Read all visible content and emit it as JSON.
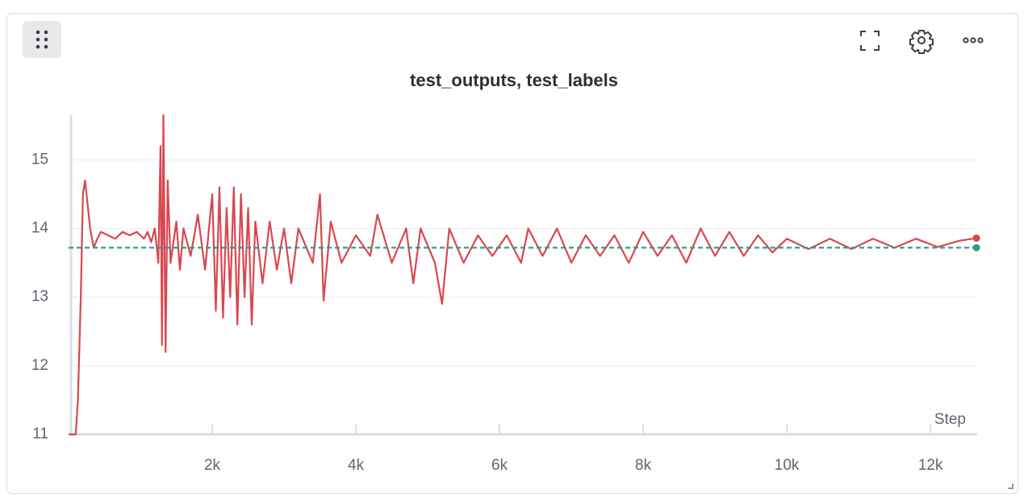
{
  "chart_data": {
    "type": "line",
    "title": "test_outputs, test_labels",
    "xlabel": "Step",
    "xlim": [
      0,
      12650
    ],
    "ylim": [
      11,
      15.65
    ],
    "xticks": [
      {
        "value": 2000,
        "label": "2k"
      },
      {
        "value": 4000,
        "label": "4k"
      },
      {
        "value": 6000,
        "label": "6k"
      },
      {
        "value": 8000,
        "label": "8k"
      },
      {
        "value": 10000,
        "label": "10k"
      },
      {
        "value": 12000,
        "label": "12k"
      }
    ],
    "yticks": [
      11,
      12,
      13,
      14,
      15
    ],
    "grid": true,
    "series": [
      {
        "color": "#d9474f",
        "style": "solid",
        "x": [
          0,
          100,
          130,
          170,
          200,
          230,
          260,
          300,
          350,
          400,
          450,
          550,
          650,
          750,
          850,
          950,
          1050,
          1100,
          1150,
          1200,
          1250,
          1280,
          1300,
          1320,
          1350,
          1380,
          1420,
          1500,
          1550,
          1600,
          1700,
          1800,
          1900,
          2000,
          2050,
          2100,
          2150,
          2200,
          2250,
          2300,
          2350,
          2400,
          2450,
          2500,
          2550,
          2600,
          2700,
          2800,
          2900,
          3000,
          3100,
          3200,
          3400,
          3500,
          3550,
          3650,
          3800,
          4000,
          4200,
          4300,
          4500,
          4700,
          4800,
          4900,
          5100,
          5200,
          5300,
          5500,
          5700,
          5900,
          6100,
          6300,
          6400,
          6600,
          6800,
          7000,
          7200,
          7400,
          7600,
          7800,
          8000,
          8200,
          8400,
          8600,
          8800,
          9000,
          9200,
          9400,
          9600,
          9800,
          10000,
          10300,
          10600,
          10900,
          11200,
          11500,
          11800,
          12100,
          12400,
          12640
        ],
        "values": [
          11,
          11,
          11.5,
          13,
          14.5,
          14.7,
          14.4,
          14,
          13.72,
          13.85,
          13.95,
          13.9,
          13.85,
          13.95,
          13.9,
          13.95,
          13.85,
          13.95,
          13.8,
          14,
          13.5,
          15.2,
          12.3,
          15.65,
          12.2,
          14.7,
          13.5,
          14.1,
          13.4,
          14,
          13.6,
          14.2,
          13.4,
          14.5,
          12.8,
          14.6,
          12.7,
          14.3,
          13,
          14.6,
          12.6,
          14.5,
          13,
          14.3,
          12.6,
          14.1,
          13.2,
          14.1,
          13.4,
          14,
          13.2,
          14,
          13.5,
          14.5,
          12.95,
          14.1,
          13.5,
          13.9,
          13.6,
          14.2,
          13.5,
          14,
          13.2,
          14,
          13.5,
          12.9,
          14,
          13.5,
          13.9,
          13.6,
          13.9,
          13.5,
          14,
          13.6,
          14,
          13.5,
          13.9,
          13.6,
          13.9,
          13.5,
          13.95,
          13.6,
          13.9,
          13.5,
          14,
          13.6,
          13.95,
          13.6,
          13.9,
          13.65,
          13.85,
          13.7,
          13.85,
          13.7,
          13.85,
          13.72,
          13.85,
          13.73,
          13.82,
          13.86
        ]
      },
      {
        "color": "#2a9d8f",
        "style": "dashed",
        "x": [
          0,
          12640
        ],
        "values": [
          13.72,
          13.72
        ]
      }
    ]
  }
}
